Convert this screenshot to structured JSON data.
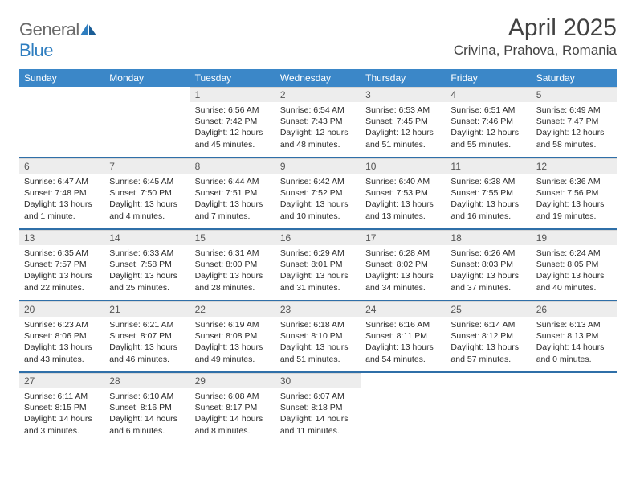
{
  "brand": {
    "name_a": "General",
    "name_b": "Blue"
  },
  "title": "April 2025",
  "location": "Crivina, Prahova, Romania",
  "colors": {
    "header_bg": "#3b87c8",
    "header_text": "#ffffff",
    "daynum_bg": "#ededed",
    "daynum_text": "#555555",
    "body_text": "#2b2b2b",
    "week_sep": "#2f6fa8",
    "logo_gray": "#6a6a6a",
    "logo_blue": "#2f7ec0"
  },
  "weekdays": [
    "Sunday",
    "Monday",
    "Tuesday",
    "Wednesday",
    "Thursday",
    "Friday",
    "Saturday"
  ],
  "weeks": [
    [
      null,
      null,
      {
        "n": "1",
        "sr": "Sunrise: 6:56 AM",
        "ss": "Sunset: 7:42 PM",
        "dl": "Daylight: 12 hours and 45 minutes."
      },
      {
        "n": "2",
        "sr": "Sunrise: 6:54 AM",
        "ss": "Sunset: 7:43 PM",
        "dl": "Daylight: 12 hours and 48 minutes."
      },
      {
        "n": "3",
        "sr": "Sunrise: 6:53 AM",
        "ss": "Sunset: 7:45 PM",
        "dl": "Daylight: 12 hours and 51 minutes."
      },
      {
        "n": "4",
        "sr": "Sunrise: 6:51 AM",
        "ss": "Sunset: 7:46 PM",
        "dl": "Daylight: 12 hours and 55 minutes."
      },
      {
        "n": "5",
        "sr": "Sunrise: 6:49 AM",
        "ss": "Sunset: 7:47 PM",
        "dl": "Daylight: 12 hours and 58 minutes."
      }
    ],
    [
      {
        "n": "6",
        "sr": "Sunrise: 6:47 AM",
        "ss": "Sunset: 7:48 PM",
        "dl": "Daylight: 13 hours and 1 minute."
      },
      {
        "n": "7",
        "sr": "Sunrise: 6:45 AM",
        "ss": "Sunset: 7:50 PM",
        "dl": "Daylight: 13 hours and 4 minutes."
      },
      {
        "n": "8",
        "sr": "Sunrise: 6:44 AM",
        "ss": "Sunset: 7:51 PM",
        "dl": "Daylight: 13 hours and 7 minutes."
      },
      {
        "n": "9",
        "sr": "Sunrise: 6:42 AM",
        "ss": "Sunset: 7:52 PM",
        "dl": "Daylight: 13 hours and 10 minutes."
      },
      {
        "n": "10",
        "sr": "Sunrise: 6:40 AM",
        "ss": "Sunset: 7:53 PM",
        "dl": "Daylight: 13 hours and 13 minutes."
      },
      {
        "n": "11",
        "sr": "Sunrise: 6:38 AM",
        "ss": "Sunset: 7:55 PM",
        "dl": "Daylight: 13 hours and 16 minutes."
      },
      {
        "n": "12",
        "sr": "Sunrise: 6:36 AM",
        "ss": "Sunset: 7:56 PM",
        "dl": "Daylight: 13 hours and 19 minutes."
      }
    ],
    [
      {
        "n": "13",
        "sr": "Sunrise: 6:35 AM",
        "ss": "Sunset: 7:57 PM",
        "dl": "Daylight: 13 hours and 22 minutes."
      },
      {
        "n": "14",
        "sr": "Sunrise: 6:33 AM",
        "ss": "Sunset: 7:58 PM",
        "dl": "Daylight: 13 hours and 25 minutes."
      },
      {
        "n": "15",
        "sr": "Sunrise: 6:31 AM",
        "ss": "Sunset: 8:00 PM",
        "dl": "Daylight: 13 hours and 28 minutes."
      },
      {
        "n": "16",
        "sr": "Sunrise: 6:29 AM",
        "ss": "Sunset: 8:01 PM",
        "dl": "Daylight: 13 hours and 31 minutes."
      },
      {
        "n": "17",
        "sr": "Sunrise: 6:28 AM",
        "ss": "Sunset: 8:02 PM",
        "dl": "Daylight: 13 hours and 34 minutes."
      },
      {
        "n": "18",
        "sr": "Sunrise: 6:26 AM",
        "ss": "Sunset: 8:03 PM",
        "dl": "Daylight: 13 hours and 37 minutes."
      },
      {
        "n": "19",
        "sr": "Sunrise: 6:24 AM",
        "ss": "Sunset: 8:05 PM",
        "dl": "Daylight: 13 hours and 40 minutes."
      }
    ],
    [
      {
        "n": "20",
        "sr": "Sunrise: 6:23 AM",
        "ss": "Sunset: 8:06 PM",
        "dl": "Daylight: 13 hours and 43 minutes."
      },
      {
        "n": "21",
        "sr": "Sunrise: 6:21 AM",
        "ss": "Sunset: 8:07 PM",
        "dl": "Daylight: 13 hours and 46 minutes."
      },
      {
        "n": "22",
        "sr": "Sunrise: 6:19 AM",
        "ss": "Sunset: 8:08 PM",
        "dl": "Daylight: 13 hours and 49 minutes."
      },
      {
        "n": "23",
        "sr": "Sunrise: 6:18 AM",
        "ss": "Sunset: 8:10 PM",
        "dl": "Daylight: 13 hours and 51 minutes."
      },
      {
        "n": "24",
        "sr": "Sunrise: 6:16 AM",
        "ss": "Sunset: 8:11 PM",
        "dl": "Daylight: 13 hours and 54 minutes."
      },
      {
        "n": "25",
        "sr": "Sunrise: 6:14 AM",
        "ss": "Sunset: 8:12 PM",
        "dl": "Daylight: 13 hours and 57 minutes."
      },
      {
        "n": "26",
        "sr": "Sunrise: 6:13 AM",
        "ss": "Sunset: 8:13 PM",
        "dl": "Daylight: 14 hours and 0 minutes."
      }
    ],
    [
      {
        "n": "27",
        "sr": "Sunrise: 6:11 AM",
        "ss": "Sunset: 8:15 PM",
        "dl": "Daylight: 14 hours and 3 minutes."
      },
      {
        "n": "28",
        "sr": "Sunrise: 6:10 AM",
        "ss": "Sunset: 8:16 PM",
        "dl": "Daylight: 14 hours and 6 minutes."
      },
      {
        "n": "29",
        "sr": "Sunrise: 6:08 AM",
        "ss": "Sunset: 8:17 PM",
        "dl": "Daylight: 14 hours and 8 minutes."
      },
      {
        "n": "30",
        "sr": "Sunrise: 6:07 AM",
        "ss": "Sunset: 8:18 PM",
        "dl": "Daylight: 14 hours and 11 minutes."
      },
      null,
      null,
      null
    ]
  ]
}
